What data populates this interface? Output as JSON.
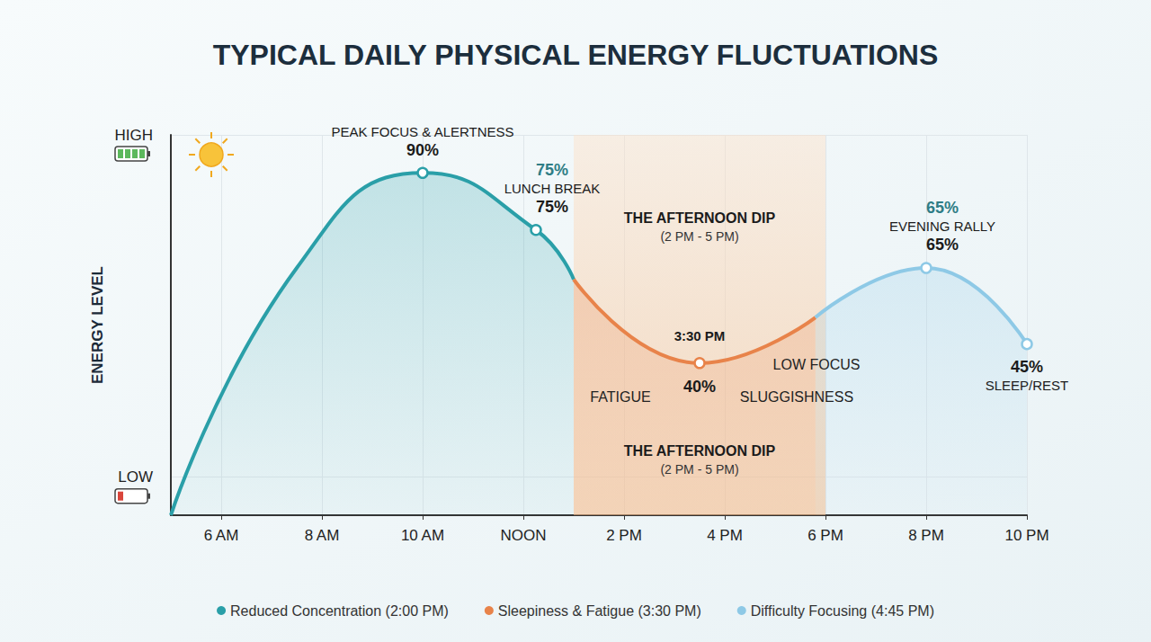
{
  "chart_data": {
    "type": "line",
    "title": "TYPICAL DAILY PHYSICAL ENERGY FLUCTUATIONS",
    "y_label": "ENERGY LEVEL",
    "xlim": [
      5,
      22
    ],
    "xticks": [
      {
        "value": 6,
        "label": "6 AM"
      },
      {
        "value": 8,
        "label": "8 AM"
      },
      {
        "value": 10,
        "label": "10 AM"
      },
      {
        "value": 12,
        "label": "NOON"
      },
      {
        "value": 14,
        "label": "2 PM"
      },
      {
        "value": 16,
        "label": "4 PM"
      },
      {
        "value": 18,
        "label": "6 PM"
      },
      {
        "value": 20,
        "label": "8 PM"
      },
      {
        "value": 22,
        "label": "10 PM"
      }
    ],
    "ylim": [
      0,
      100
    ],
    "yticks": [
      {
        "value": 10,
        "label": "LOW"
      },
      {
        "value": 100,
        "label": "HIGH"
      }
    ],
    "grid": true,
    "legend": "bottom",
    "marker": "circle",
    "line_style": "solid",
    "series": [
      {
        "name": "Reduced Concentration (2:00 PM)",
        "color": "#2a9fa8",
        "x": [
          5,
          7.5,
          10,
          12.25,
          13
        ],
        "values": [
          0,
          65,
          90,
          75,
          62
        ],
        "value_labels": [
          null,
          null,
          "90%",
          "75%",
          null
        ],
        "point_labels": [
          null,
          null,
          "PEAK FOCUS & ALERTNESS",
          "LUNCH BREAK",
          null
        ]
      },
      {
        "name": "Sleepiness & Fatigue (3:30 PM)",
        "color": "#e8834a",
        "x": [
          13,
          15.5,
          17.8
        ],
        "values": [
          62,
          40,
          52
        ],
        "value_labels": [
          null,
          "40%",
          null
        ],
        "point_labels": [
          null,
          "3:30 PM",
          null
        ]
      },
      {
        "name": "Difficulty Focusing (4:45 PM)",
        "color": "#8ec9e6",
        "x": [
          17.8,
          20,
          22
        ],
        "values": [
          52,
          65,
          45
        ],
        "value_labels": [
          null,
          "65%",
          "45%"
        ],
        "point_labels": [
          null,
          "EVENING RALLY",
          "SLEEP/REST"
        ]
      }
    ],
    "band": {
      "from": 13,
      "to": 18,
      "title": "THE AFTERNOON DIP",
      "subtitle": "(2 PM - 5 PM)",
      "notes": [
        "FATIGUE",
        "LOW FOCUS",
        "SLUGGISHNESS"
      ]
    }
  }
}
